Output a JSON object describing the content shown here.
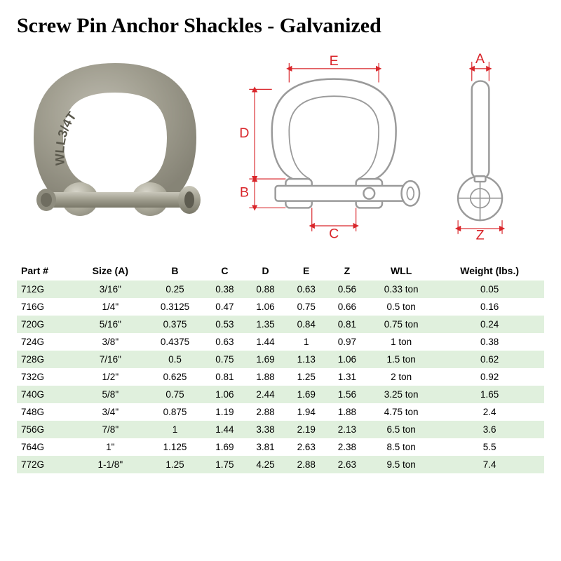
{
  "title": "Screw Pin Anchor Shackles - Galvanized",
  "diagram": {
    "labels": {
      "A": "A",
      "B": "B",
      "C": "C",
      "D": "D",
      "E": "E",
      "Z": "Z"
    },
    "dim_color": "#d9262b",
    "outline_color": "#9a9a9a",
    "photo_marking": "WLL3/4T"
  },
  "table": {
    "columns": [
      "Part #",
      "Size (A)",
      "B",
      "C",
      "D",
      "E",
      "Z",
      "WLL",
      "Weight (lbs.)"
    ],
    "row_stripe_even": "#e0f0dd",
    "row_stripe_odd": "#ffffff",
    "rows": [
      [
        "712G",
        "3/16\"",
        "0.25",
        "0.38",
        "0.88",
        "0.63",
        "0.56",
        "0.33 ton",
        "0.05"
      ],
      [
        "716G",
        "1/4\"",
        "0.3125",
        "0.47",
        "1.06",
        "0.75",
        "0.66",
        "0.5 ton",
        "0.16"
      ],
      [
        "720G",
        "5/16\"",
        "0.375",
        "0.53",
        "1.35",
        "0.84",
        "0.81",
        "0.75 ton",
        "0.24"
      ],
      [
        "724G",
        "3/8\"",
        "0.4375",
        "0.63",
        "1.44",
        "1",
        "0.97",
        "1 ton",
        "0.38"
      ],
      [
        "728G",
        "7/16\"",
        "0.5",
        "0.75",
        "1.69",
        "1.13",
        "1.06",
        "1.5 ton",
        "0.62"
      ],
      [
        "732G",
        "1/2\"",
        "0.625",
        "0.81",
        "1.88",
        "1.25",
        "1.31",
        "2 ton",
        "0.92"
      ],
      [
        "740G",
        "5/8\"",
        "0.75",
        "1.06",
        "2.44",
        "1.69",
        "1.56",
        "3.25 ton",
        "1.65"
      ],
      [
        "748G",
        "3/4\"",
        "0.875",
        "1.19",
        "2.88",
        "1.94",
        "1.88",
        "4.75 ton",
        "2.4"
      ],
      [
        "756G",
        "7/8\"",
        "1",
        "1.44",
        "3.38",
        "2.19",
        "2.13",
        "6.5 ton",
        "3.6"
      ],
      [
        "764G",
        "1\"",
        "1.125",
        "1.69",
        "3.81",
        "2.63",
        "2.38",
        "8.5 ton",
        "5.5"
      ],
      [
        "772G",
        "1-1/8\"",
        "1.25",
        "1.75",
        "4.25",
        "2.88",
        "2.63",
        "9.5 ton",
        "7.4"
      ]
    ]
  }
}
